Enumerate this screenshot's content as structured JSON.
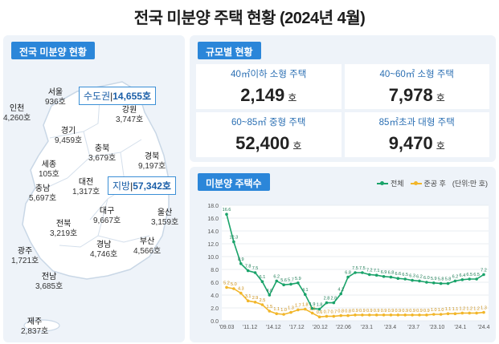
{
  "title": "전국 미분양 주택 현황  (2024년 4월)",
  "left_panel": {
    "header": "전국 미분양 현황",
    "callouts": [
      {
        "key": "수도권",
        "value": "14,655호"
      },
      {
        "key": "지방",
        "value": "57,342호"
      }
    ],
    "regions": [
      {
        "name": "서울",
        "value": "936호"
      },
      {
        "name": "인천",
        "value": "4,260호"
      },
      {
        "name": "경기",
        "value": "9,459호"
      },
      {
        "name": "강원",
        "value": "3,747호"
      },
      {
        "name": "충북",
        "value": "3,679호"
      },
      {
        "name": "세종",
        "value": "105호"
      },
      {
        "name": "충남",
        "value": "5,697호"
      },
      {
        "name": "대전",
        "value": "1,317호"
      },
      {
        "name": "경북",
        "value": "9,197호"
      },
      {
        "name": "전북",
        "value": "3,219호"
      },
      {
        "name": "대구",
        "value": "9,667호"
      },
      {
        "name": "울산",
        "value": "3,159호"
      },
      {
        "name": "광주",
        "value": "1,721호"
      },
      {
        "name": "경남",
        "value": "4,746호"
      },
      {
        "name": "부산",
        "value": "4,566호"
      },
      {
        "name": "전남",
        "value": "3,685호"
      },
      {
        "name": "제주",
        "value": "2,837호"
      }
    ]
  },
  "size_panel": {
    "header": "규모별 현황",
    "cells": [
      {
        "label": "40㎡이하 소형 주택",
        "value": "2,149",
        "unit": "호"
      },
      {
        "label": "40~60㎡ 소형 주택",
        "value": "7,978",
        "unit": "호"
      },
      {
        "label": "60~85㎡ 중형 주택",
        "value": "52,400",
        "unit": "호"
      },
      {
        "label": "85㎡초과 대형 주택",
        "value": "9,470",
        "unit": "호"
      }
    ]
  },
  "chart_panel": {
    "header": "미분양 주택수",
    "legend_total": "전체",
    "legend_completed": "준공 후",
    "unit_note": "(단위:만 호)"
  },
  "colors": {
    "accent": "#2b86d9",
    "total": "#1aa36a",
    "completed": "#f2b62a"
  },
  "chart_data": {
    "type": "line",
    "ylim": [
      0,
      18
    ],
    "yticks": [
      "0.0",
      "2.0",
      "4.0",
      "6.0",
      "8.0",
      "10.0",
      "12.0",
      "14.0",
      "16.0",
      "18.0"
    ],
    "xticks": [
      "'09.03",
      "'11.12",
      "'14.12",
      "'17.12",
      "'20.12",
      "'22.06",
      "'23.1",
      "'23.4",
      "'23.7",
      "'23.10",
      "'24.1",
      "'24.4"
    ],
    "series": [
      {
        "name": "전체",
        "values": [
          16.6,
          12.3,
          8.9,
          7.8,
          7.5,
          6.1,
          4.0,
          6.2,
          5.6,
          5.7,
          5.9,
          4.1,
          1.9,
          1.8,
          2.8,
          2.8,
          4.2,
          6.8,
          7.5,
          7.5,
          7.2,
          7.1,
          6.9,
          6.8,
          6.6,
          6.5,
          6.3,
          6.2,
          6.0,
          5.9,
          5.8,
          5.8,
          6.2,
          6.4,
          6.5,
          6.5,
          7.2
        ]
      },
      {
        "name": "준공 후",
        "values": [
          5.2,
          5.0,
          4.3,
          3.1,
          2.9,
          2.5,
          1.5,
          1.1,
          1.0,
          1.3,
          1.7,
          1.8,
          1.2,
          0.6,
          0.7,
          0.7,
          0.8,
          0.8,
          0.9,
          0.9,
          0.9,
          0.9,
          0.9,
          0.9,
          0.9,
          0.9,
          0.9,
          0.9,
          0.9,
          1.0,
          1.0,
          1.1,
          1.1,
          1.2,
          1.2,
          1.2,
          1.3
        ]
      }
    ]
  }
}
